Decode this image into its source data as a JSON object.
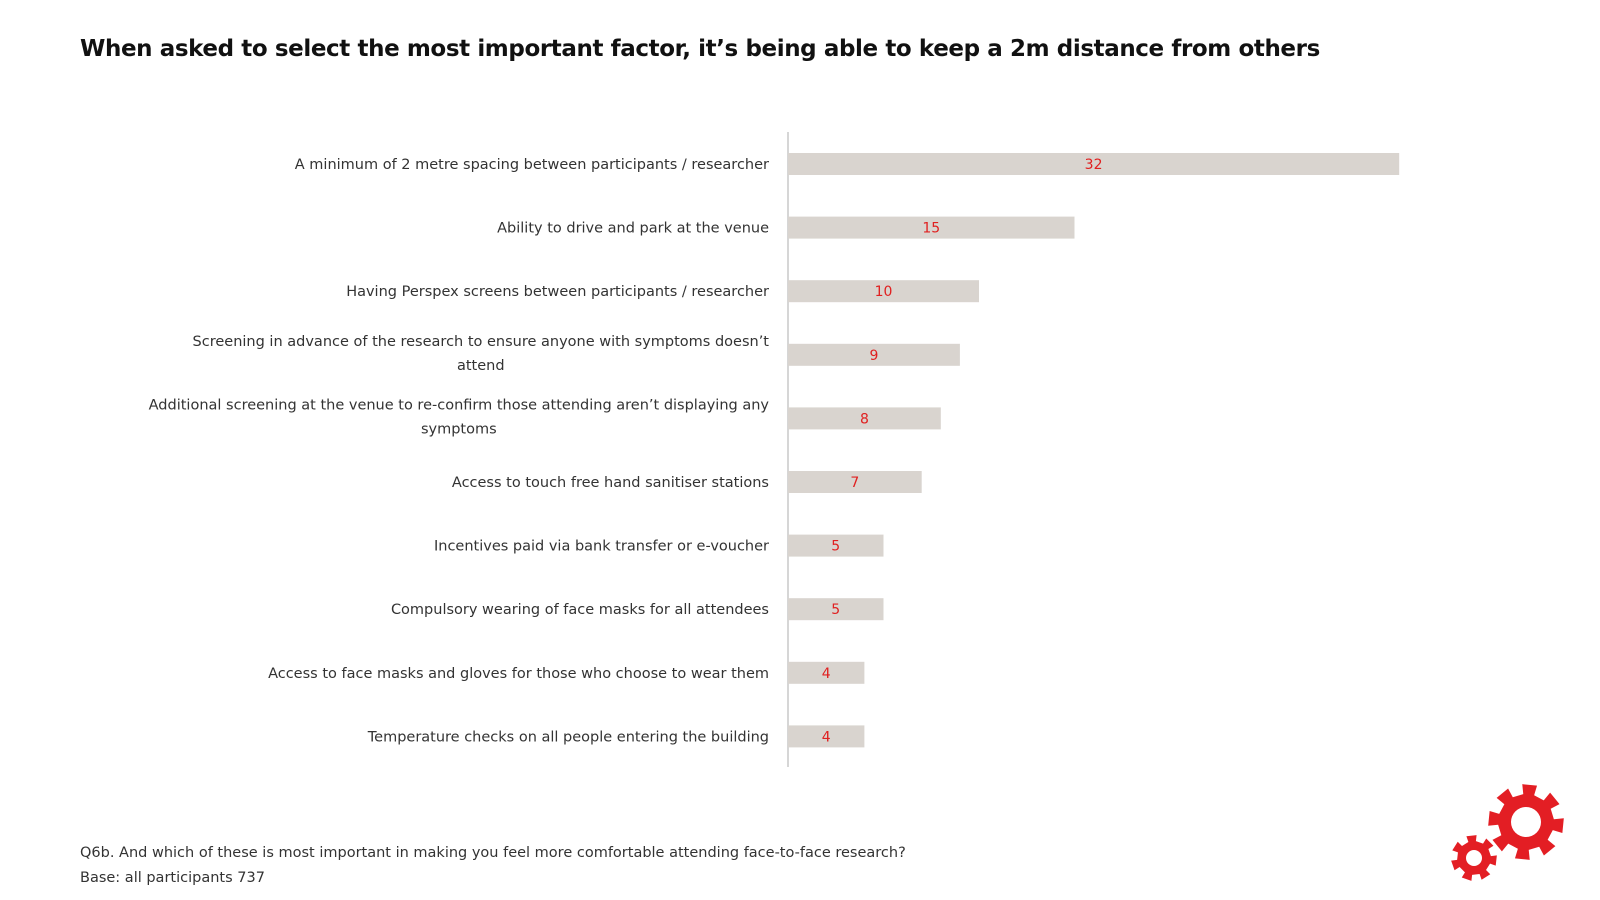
{
  "title": "When asked to select the most important factor, it’s being able to keep a 2m distance from others",
  "footnote": {
    "question": "Q6b. And which of these is most important in making you feel more comfortable attending face-to-face research?",
    "base": "Base: all participants 737"
  },
  "colors": {
    "bar": "#d9d4cf",
    "value_label": "#e02020",
    "axis": "#c8c8c8",
    "logo": "#e31e24"
  },
  "logo_icon": "gears-icon",
  "chart_data": {
    "type": "bar",
    "orientation": "horizontal",
    "categories": [
      [
        "A minimum of 2 metre spacing between participants / researcher"
      ],
      [
        "Ability to drive and park at the venue"
      ],
      [
        "Having Perspex screens between participants / researcher"
      ],
      [
        "Screening in advance of the research to ensure anyone with symptoms doesn’t",
        "attend"
      ],
      [
        "Additional screening at the venue to re-confirm those attending aren’t displaying any",
        "symptoms"
      ],
      [
        "Access to touch free hand sanitiser stations"
      ],
      [
        "Incentives paid via bank transfer or e-voucher"
      ],
      [
        "Compulsory wearing of face masks for all attendees"
      ],
      [
        "Access to face masks and gloves for those who choose to wear them"
      ],
      [
        "Temperature checks on all people entering the building"
      ]
    ],
    "values": [
      32,
      15,
      10,
      9,
      8,
      7,
      5,
      5,
      4,
      4
    ],
    "xlim": [
      0,
      40
    ],
    "grid": false,
    "legend": "none",
    "data_labels": true
  }
}
